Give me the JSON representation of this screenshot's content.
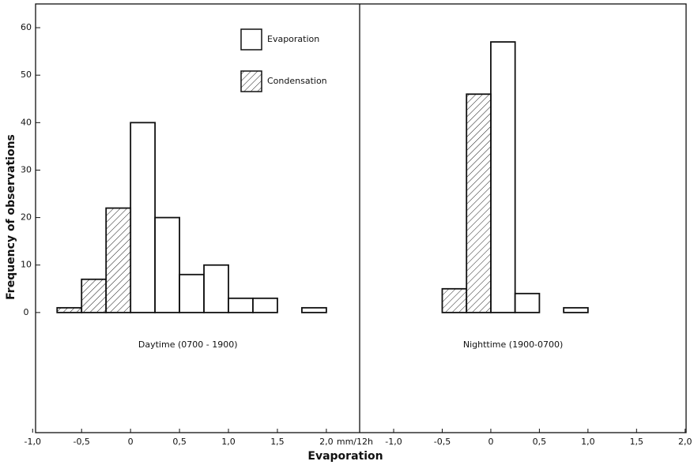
{
  "chart_data": {
    "type": "histogram",
    "ylabel": "Frequency of observations",
    "xlabel": "Evaporation",
    "ylim": [
      -25.3,
      65
    ],
    "yticks": [
      0,
      10,
      20,
      30,
      40,
      50,
      60
    ],
    "series": [
      {
        "name": "Evaporation",
        "color": "#ffffff",
        "hatch": false
      },
      {
        "name": "Condensation",
        "color": "#ffffff",
        "hatch": true
      }
    ],
    "panels": [
      {
        "label": "Daytime (0700 - 1900)",
        "xlim": [
          -0.97,
          2.34
        ],
        "xunit": "mm/12h",
        "xticks": [
          {
            "value": -1,
            "label": "-1,0"
          },
          {
            "value": -0.5,
            "label": "-0,5"
          },
          0,
          {
            "value": 0.5,
            "label": "0,5"
          },
          {
            "value": 1,
            "label": "1,0"
          },
          {
            "value": 1.5,
            "label": "1,5"
          },
          {
            "value": 2,
            "label": "2,0"
          }
        ],
        "series": [
          {
            "bins": [
              0,
              0.25,
              0.5,
              0.75,
              1.0,
              1.25,
              1.5,
              1.75,
              2.0
            ],
            "counts": [
              40,
              20,
              8,
              10,
              3,
              3,
              0,
              1
            ]
          },
          {
            "bins": [
              -0.75,
              -0.5,
              -0.25,
              0
            ],
            "counts": [
              1,
              7,
              22
            ]
          }
        ]
      },
      {
        "label": "Nighttime (1900-0700)",
        "xlim": [
          -1.35,
          2.01
        ],
        "xticks": [
          {
            "value": -1,
            "label": "-1,0"
          },
          {
            "value": -0.5,
            "label": "-0,5"
          },
          0,
          {
            "value": 0.5,
            "label": "0,5"
          },
          {
            "value": 1,
            "label": "1,0"
          },
          {
            "value": 1.5,
            "label": "1,5"
          },
          {
            "value": 2,
            "label": "2,0"
          }
        ],
        "series": [
          {
            "bins": [
              0,
              0.25,
              0.5,
              0.75,
              1.0
            ],
            "counts": [
              57,
              4,
              0,
              1
            ]
          },
          {
            "bins": [
              -0.5,
              -0.25,
              0
            ],
            "counts": [
              5,
              46
            ]
          }
        ]
      }
    ]
  }
}
